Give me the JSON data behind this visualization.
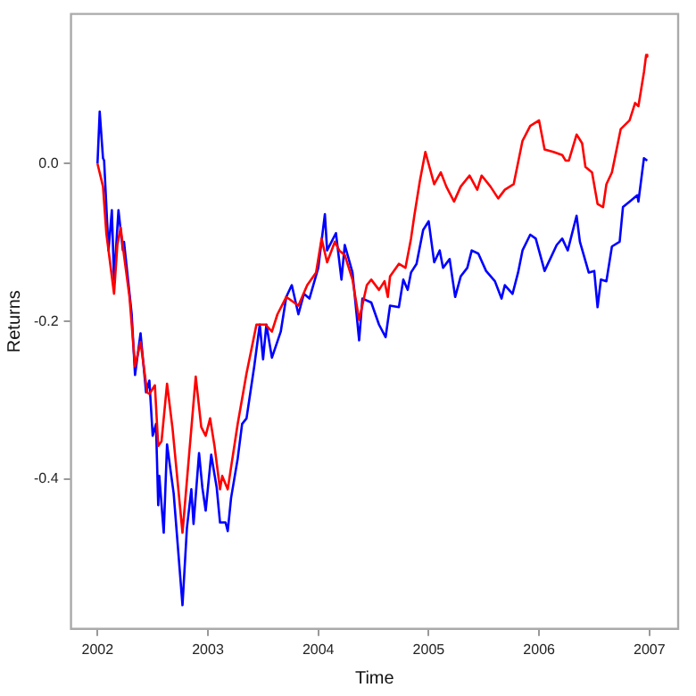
{
  "chart_data": {
    "type": "line",
    "xlabel": "Time",
    "ylabel": "Returns",
    "xlim": [
      2001.76,
      2007.26
    ],
    "ylim": [
      -0.59,
      0.19
    ],
    "xticks": [
      2002,
      2003,
      2004,
      2005,
      2006,
      2007
    ],
    "yticks": [
      -0.4,
      -0.2,
      {
        "value": 0,
        "label": "0.0"
      }
    ],
    "grid": false,
    "legend": false,
    "series": [
      {
        "color": "#ff0000",
        "x": [
          2002.0,
          2002.05,
          2002.08,
          2002.15,
          2002.18,
          2002.21,
          2002.24,
          2002.29,
          2002.34,
          2002.39,
          2002.45,
          2002.47,
          2002.52,
          2002.55,
          2002.58,
          2002.63,
          2002.68,
          2002.77,
          2002.85,
          2002.89,
          2002.94,
          2002.98,
          2003.02,
          2003.06,
          2003.11,
          2003.13,
          2003.18,
          2003.21,
          2003.27,
          2003.32,
          2003.35,
          2003.44,
          2003.52,
          2003.58,
          2003.63,
          2003.71,
          2003.82,
          2003.9,
          2003.98,
          2004.03,
          2004.08,
          2004.15,
          2004.19,
          2004.24,
          2004.31,
          2004.37,
          2004.44,
          2004.48,
          2004.55,
          2004.6,
          2004.63,
          2004.65,
          2004.73,
          2004.79,
          2004.84,
          2004.87,
          2004.92,
          2004.97,
          2005.05,
          2005.11,
          2005.16,
          2005.23,
          2005.29,
          2005.37,
          2005.44,
          2005.48,
          2005.56,
          2005.63,
          2005.69,
          2005.77,
          2005.85,
          2005.92,
          2006.0,
          2006.05,
          2006.13,
          2006.21,
          2006.24,
          2006.27,
          2006.34,
          2006.39,
          2006.42,
          2006.48,
          2006.53,
          2006.58,
          2006.61,
          2006.66,
          2006.74,
          2006.82,
          2006.87,
          2006.9,
          2006.95,
          2006.97,
          2006.98
        ],
        "values": [
          0,
          -0.029,
          -0.088,
          -0.165,
          -0.103,
          -0.081,
          -0.116,
          -0.169,
          -0.257,
          -0.226,
          -0.29,
          -0.292,
          -0.281,
          -0.358,
          -0.352,
          -0.279,
          -0.336,
          -0.468,
          -0.336,
          -0.27,
          -0.334,
          -0.345,
          -0.323,
          -0.358,
          -0.413,
          -0.396,
          -0.413,
          -0.385,
          -0.33,
          -0.29,
          -0.266,
          -0.204,
          -0.204,
          -0.213,
          -0.191,
          -0.169,
          -0.18,
          -0.154,
          -0.138,
          -0.095,
          -0.125,
          -0.099,
          -0.11,
          -0.116,
          -0.147,
          -0.198,
          -0.154,
          -0.147,
          -0.16,
          -0.149,
          -0.169,
          -0.143,
          -0.127,
          -0.132,
          -0.095,
          -0.066,
          -0.022,
          0.015,
          -0.026,
          -0.011,
          -0.029,
          -0.048,
          -0.029,
          -0.015,
          -0.033,
          -0.015,
          -0.029,
          -0.044,
          -0.033,
          -0.026,
          0.029,
          0.048,
          0.055,
          0.018,
          0.015,
          0.011,
          0.004,
          0.004,
          0.037,
          0.026,
          -0.004,
          -0.011,
          -0.051,
          -0.055,
          -0.026,
          -0.011,
          0.044,
          0.055,
          0.077,
          0.073,
          0.116,
          0.138,
          0.136
        ]
      },
      {
        "color": "#0000ff",
        "x": [
          2002.0,
          2002.02,
          2002.05,
          2002.06,
          2002.1,
          2002.13,
          2002.15,
          2002.19,
          2002.23,
          2002.24,
          2002.31,
          2002.34,
          2002.39,
          2002.44,
          2002.47,
          2002.5,
          2002.53,
          2002.55,
          2002.56,
          2002.6,
          2002.63,
          2002.69,
          2002.77,
          2002.81,
          2002.85,
          2002.87,
          2002.92,
          2002.95,
          2002.98,
          2003.03,
          2003.08,
          2003.11,
          2003.16,
          2003.18,
          2003.21,
          2003.27,
          2003.31,
          2003.35,
          2003.42,
          2003.47,
          2003.5,
          2003.53,
          2003.58,
          2003.66,
          2003.71,
          2003.76,
          2003.82,
          2003.87,
          2003.92,
          2004.0,
          2004.06,
          2004.08,
          2004.16,
          2004.21,
          2004.24,
          2004.31,
          2004.37,
          2004.4,
          2004.48,
          2004.55,
          2004.61,
          2004.65,
          2004.73,
          2004.77,
          2004.81,
          2004.84,
          2004.89,
          2004.95,
          2005.0,
          2005.05,
          2005.1,
          2005.13,
          2005.19,
          2005.24,
          2005.29,
          2005.35,
          2005.39,
          2005.45,
          2005.52,
          2005.6,
          2005.66,
          2005.69,
          2005.76,
          2005.81,
          2005.85,
          2005.92,
          2005.97,
          2006.05,
          2006.1,
          2006.16,
          2006.21,
          2006.26,
          2006.34,
          2006.37,
          2006.45,
          2006.5,
          2006.53,
          2006.56,
          2006.61,
          2006.66,
          2006.73,
          2006.76,
          2006.82,
          2006.89,
          2006.9,
          2006.95,
          2006.98
        ],
        "values": [
          0,
          0.066,
          0.007,
          0.004,
          -0.11,
          -0.059,
          -0.147,
          -0.059,
          -0.11,
          -0.099,
          -0.191,
          -0.268,
          -0.215,
          -0.29,
          -0.275,
          -0.345,
          -0.33,
          -0.433,
          -0.396,
          -0.468,
          -0.356,
          -0.418,
          -0.56,
          -0.462,
          -0.413,
          -0.457,
          -0.367,
          -0.411,
          -0.44,
          -0.369,
          -0.411,
          -0.455,
          -0.455,
          -0.466,
          -0.424,
          -0.374,
          -0.33,
          -0.323,
          -0.257,
          -0.204,
          -0.248,
          -0.204,
          -0.246,
          -0.213,
          -0.169,
          -0.154,
          -0.191,
          -0.165,
          -0.171,
          -0.132,
          -0.064,
          -0.11,
          -0.088,
          -0.147,
          -0.103,
          -0.138,
          -0.224,
          -0.171,
          -0.176,
          -0.204,
          -0.22,
          -0.18,
          -0.182,
          -0.147,
          -0.16,
          -0.138,
          -0.127,
          -0.084,
          -0.073,
          -0.125,
          -0.11,
          -0.132,
          -0.121,
          -0.169,
          -0.143,
          -0.132,
          -0.11,
          -0.114,
          -0.136,
          -0.149,
          -0.171,
          -0.154,
          -0.165,
          -0.138,
          -0.11,
          -0.09,
          -0.095,
          -0.136,
          -0.121,
          -0.103,
          -0.095,
          -0.11,
          -0.066,
          -0.099,
          -0.138,
          -0.136,
          -0.182,
          -0.147,
          -0.149,
          -0.105,
          -0.099,
          -0.055,
          -0.048,
          -0.04,
          -0.048,
          0.007,
          0.004
        ]
      }
    ]
  }
}
